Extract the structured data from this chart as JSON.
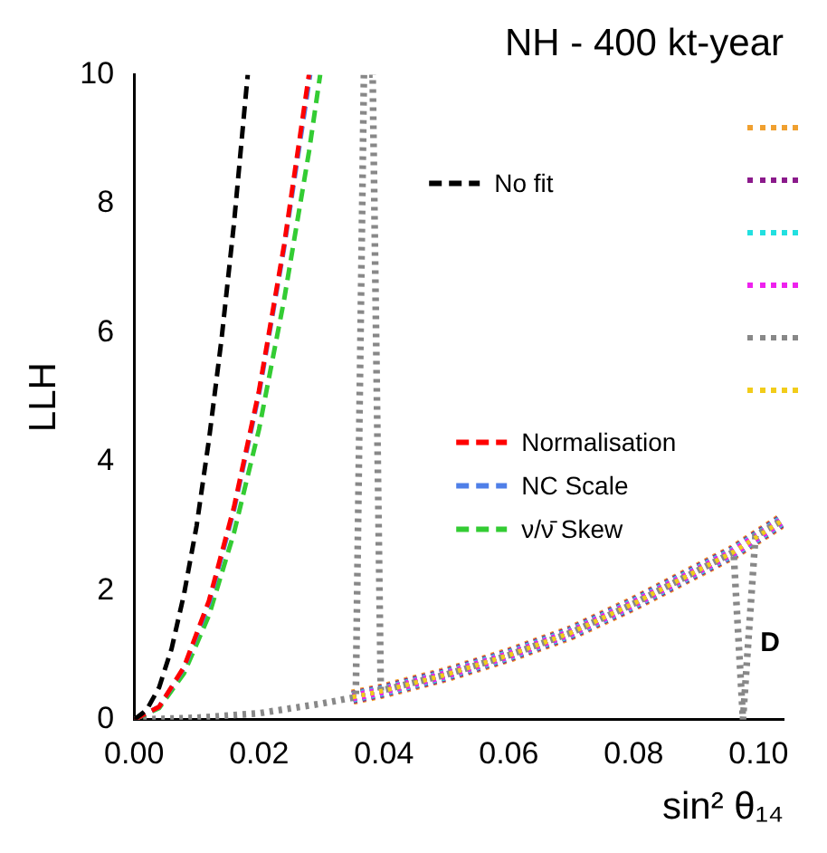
{
  "chart_data": {
    "type": "line",
    "title": "NH - 400 kt-year",
    "xlabel": "sin² θ₁₄",
    "ylabel": "LLH",
    "xlim": [
      0,
      0.104
    ],
    "ylim": [
      0,
      10
    ],
    "xticks": [
      {
        "value": 0,
        "label": "0.00"
      },
      0.02,
      0.04,
      0.06,
      0.08,
      {
        "value": 0.1,
        "label": "0.10"
      }
    ],
    "yticks": [
      0,
      2,
      4,
      6,
      8,
      10
    ],
    "grid": false,
    "legend": "right",
    "marker": "none",
    "annotations": [
      "D"
    ],
    "series": [
      {
        "name": "No fit",
        "color": "#000000",
        "line_style": "dashed",
        "x": [
          0,
          0.002,
          0.004,
          0.006,
          0.008,
          0.01,
          0.012,
          0.014,
          0.016,
          0.018,
          0.0182
        ],
        "values": [
          0,
          0.15,
          0.5,
          1.1,
          1.95,
          3.0,
          4.35,
          5.9,
          7.7,
          9.8,
          10
        ]
      },
      {
        "name": "Normalisation",
        "color": "#ff0000",
        "line_style": "dashed",
        "x": [
          0,
          0.004,
          0.008,
          0.012,
          0.016,
          0.02,
          0.024,
          0.028
        ],
        "values": [
          0,
          0.2,
          0.82,
          1.85,
          3.3,
          5.1,
          7.35,
          10
        ]
      },
      {
        "name": "NC Scale",
        "color": "#4f7fe8",
        "line_style": "dashed",
        "x": [
          0,
          0.004,
          0.008,
          0.012,
          0.016,
          0.02,
          0.024,
          0.0282
        ],
        "values": [
          0,
          0.2,
          0.8,
          1.8,
          3.25,
          5.05,
          7.3,
          10
        ]
      },
      {
        "name": "ν/ν̄ Skew",
        "color": "#33cc33",
        "line_style": "dashed",
        "x": [
          0,
          0.004,
          0.008,
          0.012,
          0.016,
          0.02,
          0.024,
          0.028,
          0.0298
        ],
        "values": [
          0,
          0.18,
          0.72,
          1.62,
          2.9,
          4.5,
          6.5,
          8.8,
          10
        ]
      },
      {
        "color": "#f0a030",
        "line_style": "dotted",
        "x": [
          0.035,
          0.04,
          0.05,
          0.06,
          0.07,
          0.08,
          0.09,
          0.096,
          0.1,
          0.104
        ],
        "values": [
          0.35,
          0.45,
          0.7,
          1.0,
          1.35,
          1.8,
          2.3,
          2.6,
          2.85,
          3.1
        ]
      },
      {
        "color": "#8b1a8b",
        "line_style": "dotted",
        "x": [
          0.035,
          0.04,
          0.05,
          0.06,
          0.07,
          0.08,
          0.09,
          0.096,
          0.1,
          0.104
        ],
        "values": [
          0.35,
          0.45,
          0.7,
          1.0,
          1.35,
          1.8,
          2.3,
          2.6,
          2.85,
          3.1
        ]
      },
      {
        "color": "#22e0e0",
        "line_style": "dotted",
        "x": [
          0.035,
          0.04,
          0.05,
          0.06,
          0.07,
          0.08,
          0.09,
          0.096,
          0.1,
          0.104
        ],
        "values": [
          0.35,
          0.45,
          0.7,
          1.0,
          1.35,
          1.8,
          2.3,
          2.6,
          2.85,
          3.1
        ]
      },
      {
        "color": "#ee22ee",
        "line_style": "dotted",
        "x": [
          0.035,
          0.04,
          0.05,
          0.06,
          0.07,
          0.08,
          0.09,
          0.096,
          0.1,
          0.104
        ],
        "values": [
          0.35,
          0.45,
          0.7,
          1.0,
          1.35,
          1.8,
          2.3,
          2.6,
          2.85,
          3.1
        ]
      },
      {
        "color": "#888888",
        "line_style": "dotted",
        "x": [
          0,
          0.01,
          0.02,
          0.03,
          0.0355,
          0.0368,
          0.0382,
          0.0395,
          0.05,
          0.06,
          0.07,
          0.08,
          0.09,
          0.096,
          0.0975,
          0.0995,
          0.104
        ],
        "values": [
          0,
          0.03,
          0.1,
          0.25,
          0.35,
          10,
          10,
          0.45,
          0.7,
          1.0,
          1.35,
          1.8,
          2.3,
          2.6,
          0,
          2.85,
          3.1
        ]
      },
      {
        "color": "#f2cc1a",
        "line_style": "dotted",
        "x": [
          0.035,
          0.04,
          0.05,
          0.06,
          0.07,
          0.08,
          0.09,
          0.096,
          0.1,
          0.104
        ],
        "values": [
          0.35,
          0.45,
          0.7,
          1.0,
          1.35,
          1.8,
          2.3,
          2.6,
          2.85,
          3.1
        ]
      }
    ]
  }
}
